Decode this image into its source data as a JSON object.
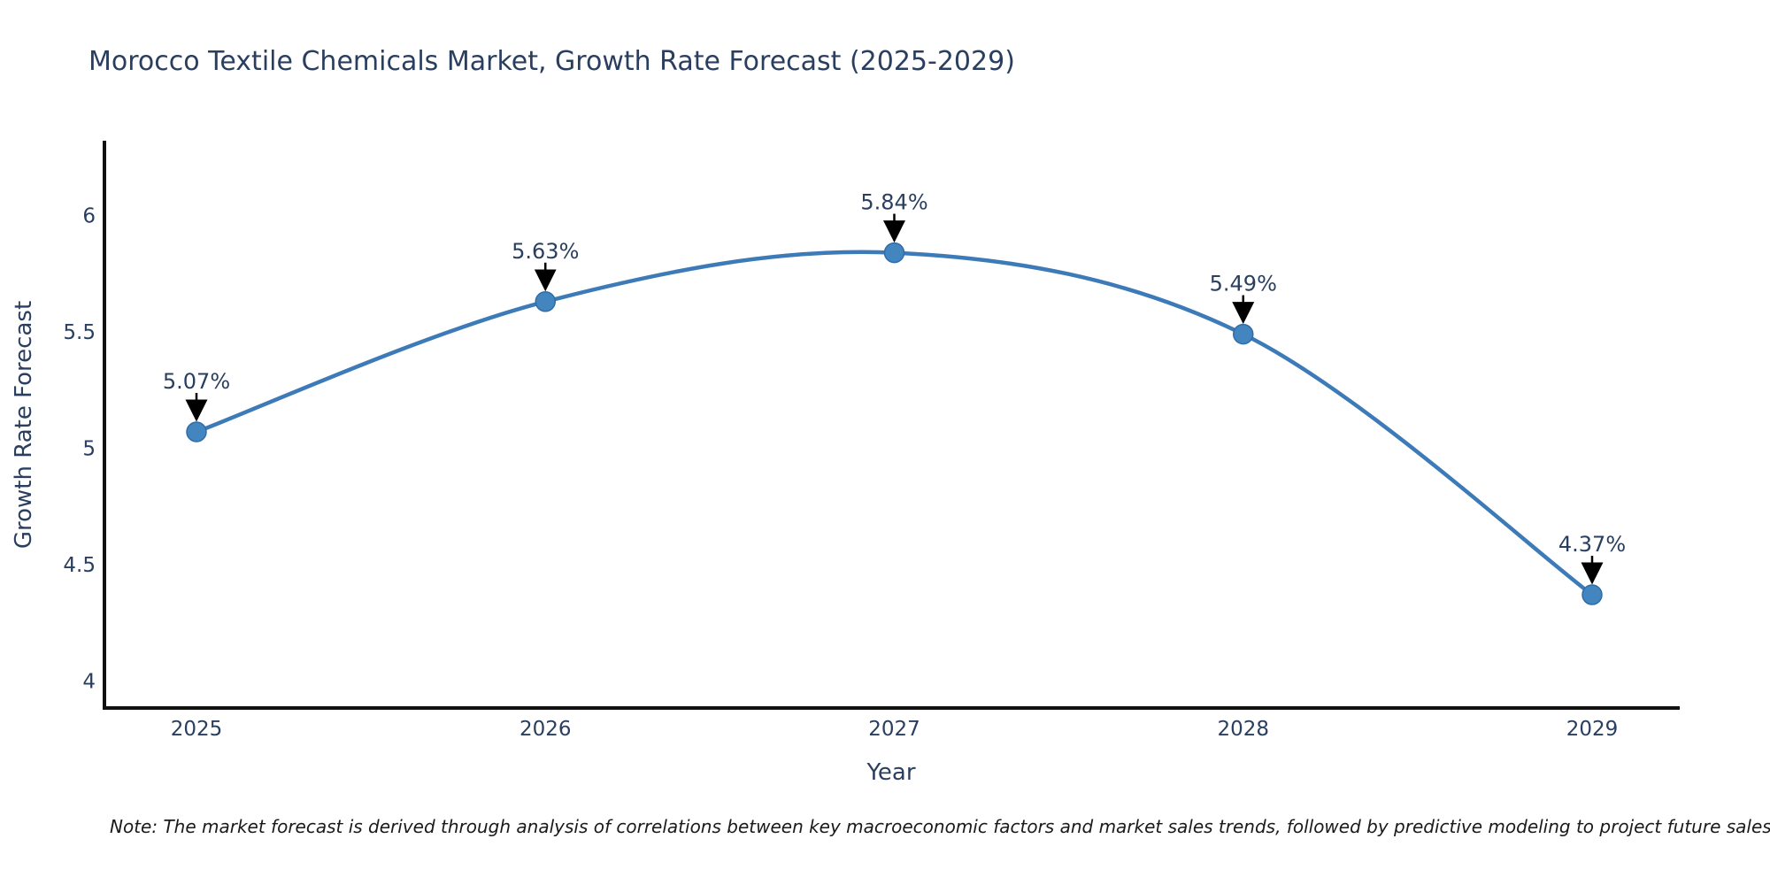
{
  "title": "Morocco Textile Chemicals Market, Growth Rate Forecast (2025-2029)",
  "note": "Note: The market forecast is derived through analysis of correlations between key macroeconomic factors and market sales trends, followed by predictive modeling to project future sales",
  "chart_data": {
    "type": "line",
    "title": "Morocco Textile Chemicals Market, Growth Rate Forecast (2025-2029)",
    "x": [
      2025,
      2026,
      2027,
      2028,
      2029
    ],
    "series": [
      {
        "name": "Growth Rate Forecast",
        "values": [
          5.07,
          5.63,
          5.84,
          5.49,
          4.37
        ],
        "point_labels": [
          "5.07%",
          "5.63%",
          "5.84%",
          "5.49%",
          "4.37%"
        ]
      }
    ],
    "xlabel": "Year",
    "ylabel": "Growth Rate Forecast",
    "xticks": [
      "2025",
      "2026",
      "2027",
      "2028",
      "2029"
    ],
    "yticks": [
      4,
      4.5,
      5,
      5.5,
      6
    ],
    "ytick_labels": [
      "4",
      "4.5",
      "5",
      "5.5",
      "6"
    ],
    "ylim": [
      3.88,
      6.32
    ],
    "xlim": [
      2024.72,
      2029.25
    ],
    "grid": false,
    "legend": "none",
    "line_shape": "spline",
    "colors": {
      "line": "#3d7ab8",
      "marker_fill": "#4285bf",
      "marker_stroke": "#2f6da8",
      "annotation_text": "#2a3f5f",
      "annotation_arrow": "#000000",
      "axis_spine": "#111111",
      "tick_label": "#2a3f5f",
      "title_text": "#2a3f5f",
      "note_text": "#1a1a1a"
    }
  }
}
